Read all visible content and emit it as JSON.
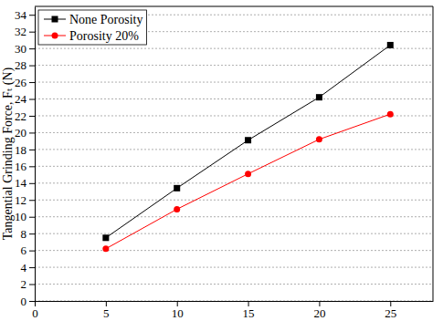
{
  "chart_data": {
    "type": "line",
    "y_label": "Tangential Grinding Force, Fₜ (N)",
    "x": [
      5,
      10,
      15,
      20,
      25
    ],
    "series": [
      {
        "name": "None Porosity",
        "color": "#000000",
        "marker": "square",
        "line_style": "solid",
        "values": [
          7.5,
          13.4,
          19.1,
          24.2,
          30.4
        ]
      },
      {
        "name": "Porosity 20%",
        "color": "#ff0000",
        "marker": "circle",
        "line_style": "solid",
        "values": [
          6.2,
          10.9,
          15.1,
          19.2,
          22.2
        ]
      }
    ],
    "xlim": [
      0,
      28
    ],
    "xticks": [
      0,
      5,
      10,
      15,
      20,
      25
    ],
    "ylim": [
      0,
      35
    ],
    "yticks": [
      0,
      2,
      4,
      6,
      8,
      10,
      12,
      14,
      16,
      18,
      20,
      22,
      24,
      26,
      28,
      30,
      32,
      34
    ],
    "grid": true,
    "legend": "upper left"
  }
}
